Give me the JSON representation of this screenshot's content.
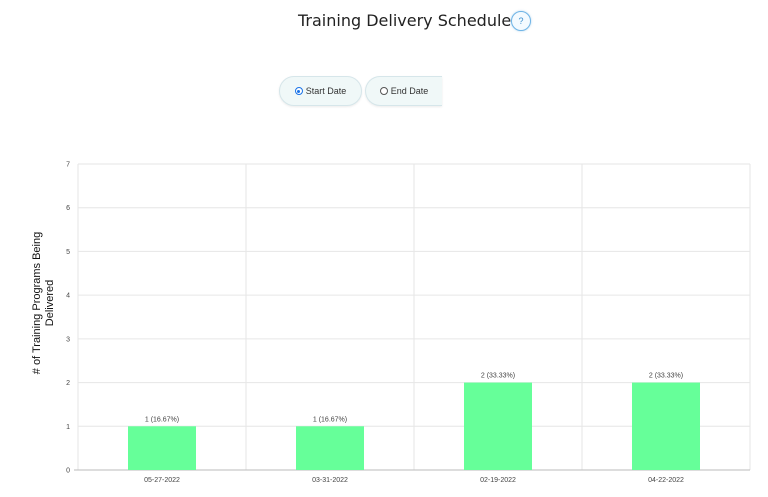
{
  "header": {
    "title": "Training Delivery Schedule",
    "help_label": "?"
  },
  "filter": {
    "options": [
      {
        "label": "Start Date",
        "selected": true
      },
      {
        "label": "End Date",
        "selected": false
      }
    ]
  },
  "colors": {
    "bar": "#66ff99",
    "grid": "#e6e6e6",
    "accent": "#1a73e8"
  },
  "chart_data": {
    "type": "bar",
    "ylabel": "# of Training Programs Being Delivered",
    "ylabel_lines": [
      "# of Training Programs Being",
      "Delivered"
    ],
    "categories": [
      "05-27-2022",
      "03-31-2022",
      "02-19-2022",
      "04-22-2022"
    ],
    "values": [
      1,
      1,
      2,
      2
    ],
    "data_labels": [
      "1 (16.67%)",
      "1 (16.67%)",
      "2 (33.33%)",
      "2 (33.33%)"
    ],
    "ylim": [
      0,
      7
    ],
    "yticks": [
      0,
      1,
      2,
      3,
      4,
      5,
      6,
      7
    ],
    "grid": true,
    "legend": "none"
  }
}
